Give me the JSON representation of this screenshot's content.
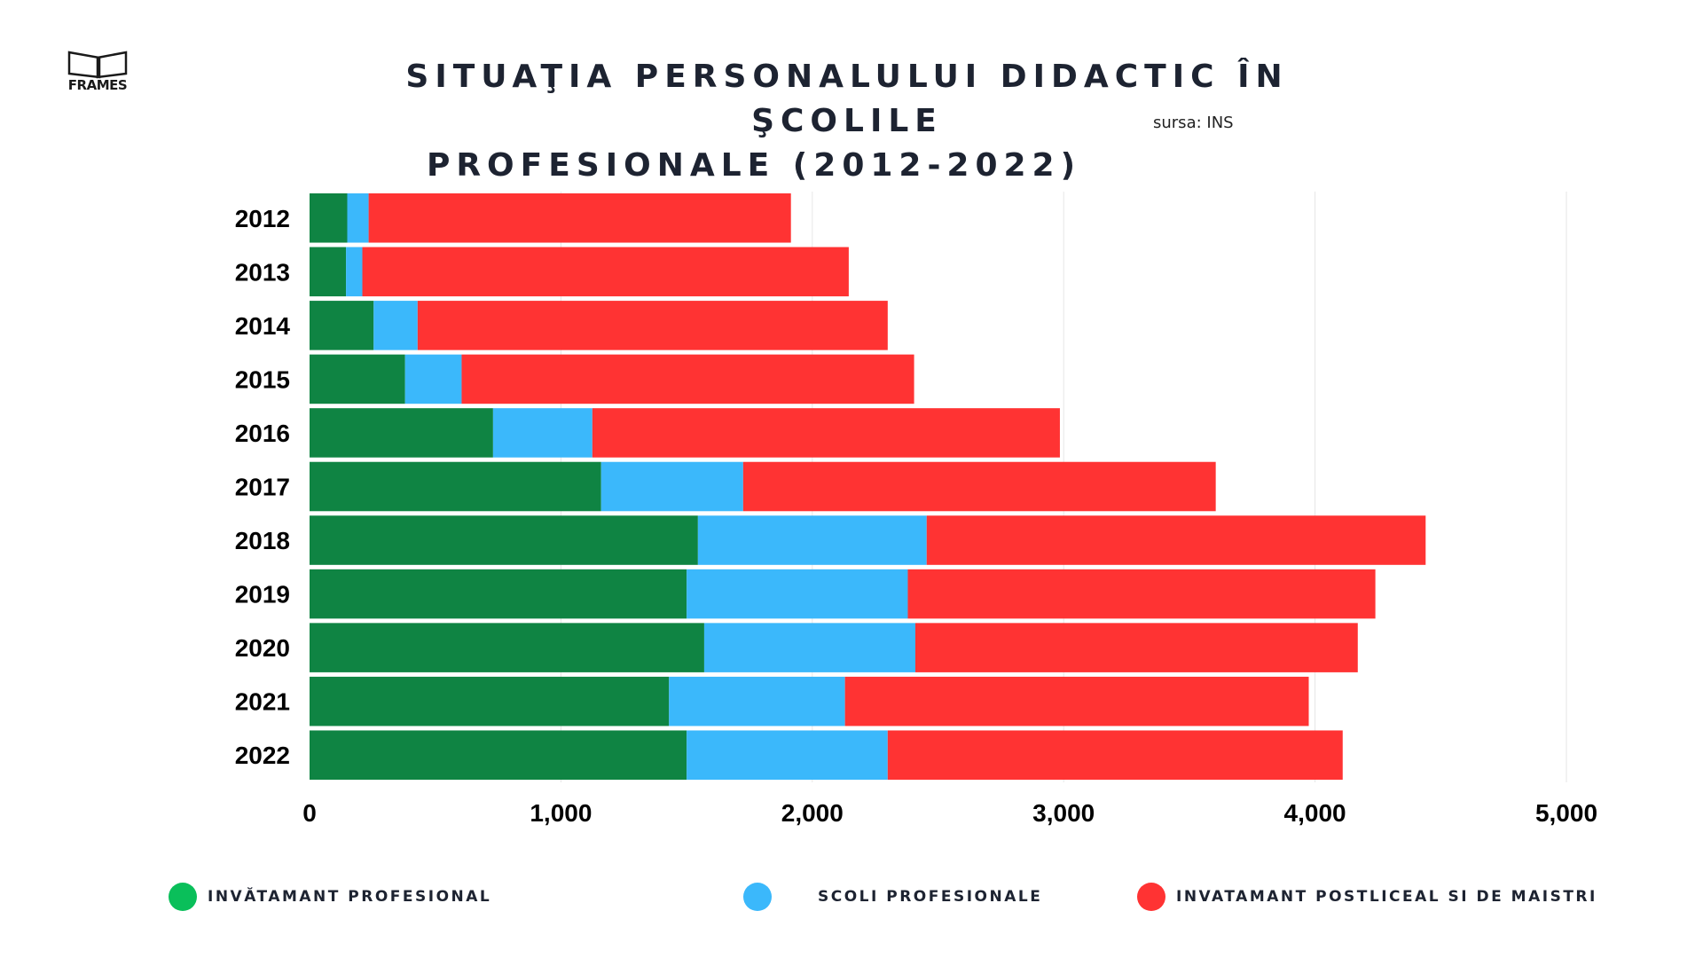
{
  "logo": {
    "text": "FRAMES"
  },
  "title_line1": "SITUAŢIA PERSONALULUI DIDACTIC ÎN ŞCOLILE",
  "title_line2": "PROFESIONALE (2012-2022)",
  "source": "sursa: INS",
  "colors": {
    "background": "#ffffff",
    "grid": "#e6e6e6",
    "text": "#1d2331"
  },
  "chart_data": {
    "type": "bar",
    "orientation": "horizontal",
    "stacked": true,
    "categories": [
      "2012",
      "2013",
      "2014",
      "2015",
      "2016",
      "2017",
      "2018",
      "2019",
      "2020",
      "2021",
      "2022"
    ],
    "series": [
      {
        "name": "INVĂTAMANT PROFESIONAL",
        "color": "#0f8443",
        "values": [
          150,
          145,
          255,
          380,
          730,
          1160,
          1545,
          1500,
          1570,
          1430,
          1500
        ]
      },
      {
        "name": "SCOLI PROFESIONALE",
        "color": "#3bb8fb",
        "values": [
          85,
          65,
          175,
          225,
          395,
          565,
          910,
          880,
          840,
          700,
          800
        ]
      },
      {
        "name": "INVATAMANT POSTLICEAL SI DE MAISTRI",
        "color": "#ff3333",
        "values": [
          1680,
          1935,
          1870,
          1800,
          1860,
          1880,
          1985,
          1860,
          1760,
          1845,
          1810
        ]
      }
    ],
    "xlim": [
      0,
      5000
    ],
    "xticks": [
      "0",
      "1,000",
      "2,000",
      "3,000",
      "4,000",
      "5,000"
    ],
    "grid": true,
    "legend_position": "bottom"
  },
  "legend": [
    {
      "label": "INVĂTAMANT PROFESIONAL",
      "color": "#0abf5a"
    },
    {
      "label": "SCOLI PROFESIONALE",
      "color": "#3bb8fb"
    },
    {
      "label": "INVATAMANT POSTLICEAL SI DE MAISTRI",
      "color": "#ff3333"
    }
  ]
}
